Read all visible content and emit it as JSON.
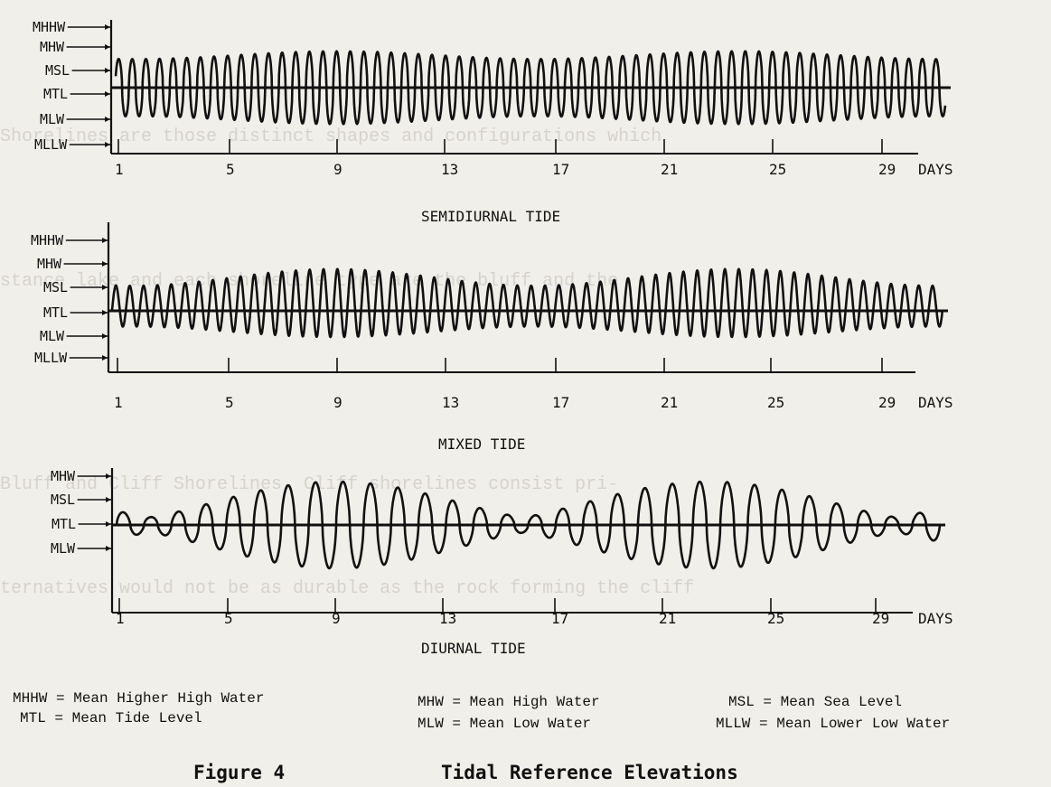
{
  "figure": {
    "caption_number": "Figure 4",
    "caption_title": "Tidal Reference Elevations"
  },
  "x_axis": {
    "ticks": [
      "1",
      "5",
      "9",
      "13",
      "17",
      "21",
      "25",
      "29"
    ],
    "unit_label": "DAYS"
  },
  "panels": [
    {
      "title": "SEMIDIURNAL TIDE",
      "levels": [
        "MHHW",
        "MHW",
        "MSL",
        "MTL",
        "MLW",
        "MLLW"
      ]
    },
    {
      "title": "MIXED TIDE",
      "levels": [
        "MHHW",
        "MHW",
        "MSL",
        "MTL",
        "MLW",
        "MLLW"
      ]
    },
    {
      "title": "DIURNAL TIDE",
      "levels": [
        "MHW",
        "MSL",
        "MTL",
        "MLW"
      ]
    }
  ],
  "legend": [
    "MHHW = Mean Higher High Water",
    "MTL = Mean Tide Level",
    "MHW = Mean High Water",
    "MLW = Mean Low Water",
    "MSL = Mean Sea Level",
    "MLLW = Mean Lower Low Water"
  ],
  "chart_data": [
    {
      "type": "line",
      "title": "SEMIDIURNAL TIDE",
      "xlabel": "DAYS",
      "xlim": [
        1,
        31
      ],
      "tide_cycles_per_day": 2,
      "description_levels": [
        "MHHW",
        "MHW",
        "MSL",
        "MTL",
        "MLW",
        "MLLW"
      ]
    },
    {
      "type": "line",
      "title": "MIXED TIDE",
      "xlabel": "DAYS",
      "xlim": [
        1,
        31
      ],
      "tide_cycles_per_day": 2,
      "description_levels": [
        "MHHW",
        "MHW",
        "MSL",
        "MTL",
        "MLW",
        "MLLW"
      ]
    },
    {
      "type": "line",
      "title": "DIURNAL TIDE",
      "xlabel": "DAYS",
      "xlim": [
        1,
        31
      ],
      "tide_cycles_per_day": 1,
      "description_levels": [
        "MHW",
        "MSL",
        "MTL",
        "MLW"
      ]
    }
  ]
}
